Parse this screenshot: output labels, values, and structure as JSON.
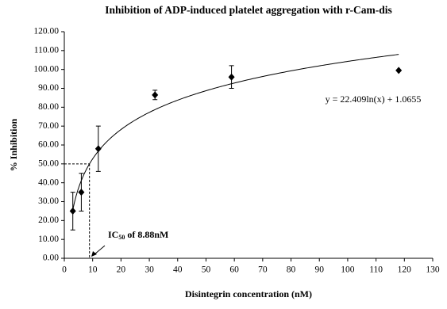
{
  "chart_data": {
    "type": "scatter",
    "title": "Inhibition of ADP-induced platelet aggregation with r-Cam-dis",
    "x_label": "Disintegrin concentration (nM)",
    "y_label": "% Inhibition",
    "x": [
      3,
      6,
      12,
      32,
      59,
      118
    ],
    "series": [
      {
        "name": "Inhibition",
        "color": "#000000",
        "values": [
          25,
          35,
          58,
          86.5,
          96,
          99.5
        ],
        "errors": [
          10,
          10,
          12,
          2.5,
          6,
          null
        ]
      }
    ],
    "trendline": {
      "label": "y = 22.409ln(x) + 1.0655",
      "a": 22.409,
      "b": 1.0655
    },
    "ic50": {
      "x": 8.88,
      "y": 50,
      "label_prefix": "IC",
      "label_sub": "50",
      "label_suffix": " of 8.88nM"
    },
    "xlim": [
      0,
      130
    ],
    "xticks": [
      0,
      10,
      20,
      30,
      40,
      50,
      60,
      70,
      80,
      90,
      100,
      110,
      120,
      130
    ],
    "ylim": [
      0,
      120
    ],
    "yticks": [
      {
        "value": 0,
        "label": "0.00"
      },
      {
        "value": 10,
        "label": "10.00"
      },
      {
        "value": 20,
        "label": "20.00"
      },
      {
        "value": 30,
        "label": "30.00"
      },
      {
        "value": 40,
        "label": "40.00"
      },
      {
        "value": 50,
        "label": "50.00"
      },
      {
        "value": 60,
        "label": "60.00"
      },
      {
        "value": 70,
        "label": "70.00"
      },
      {
        "value": 80,
        "label": "80.00"
      },
      {
        "value": 90,
        "label": "90.00"
      },
      {
        "value": 100,
        "label": "100.00"
      },
      {
        "value": 110,
        "label": "110.00"
      },
      {
        "value": 120,
        "label": "120.00"
      }
    ],
    "grid": false
  }
}
